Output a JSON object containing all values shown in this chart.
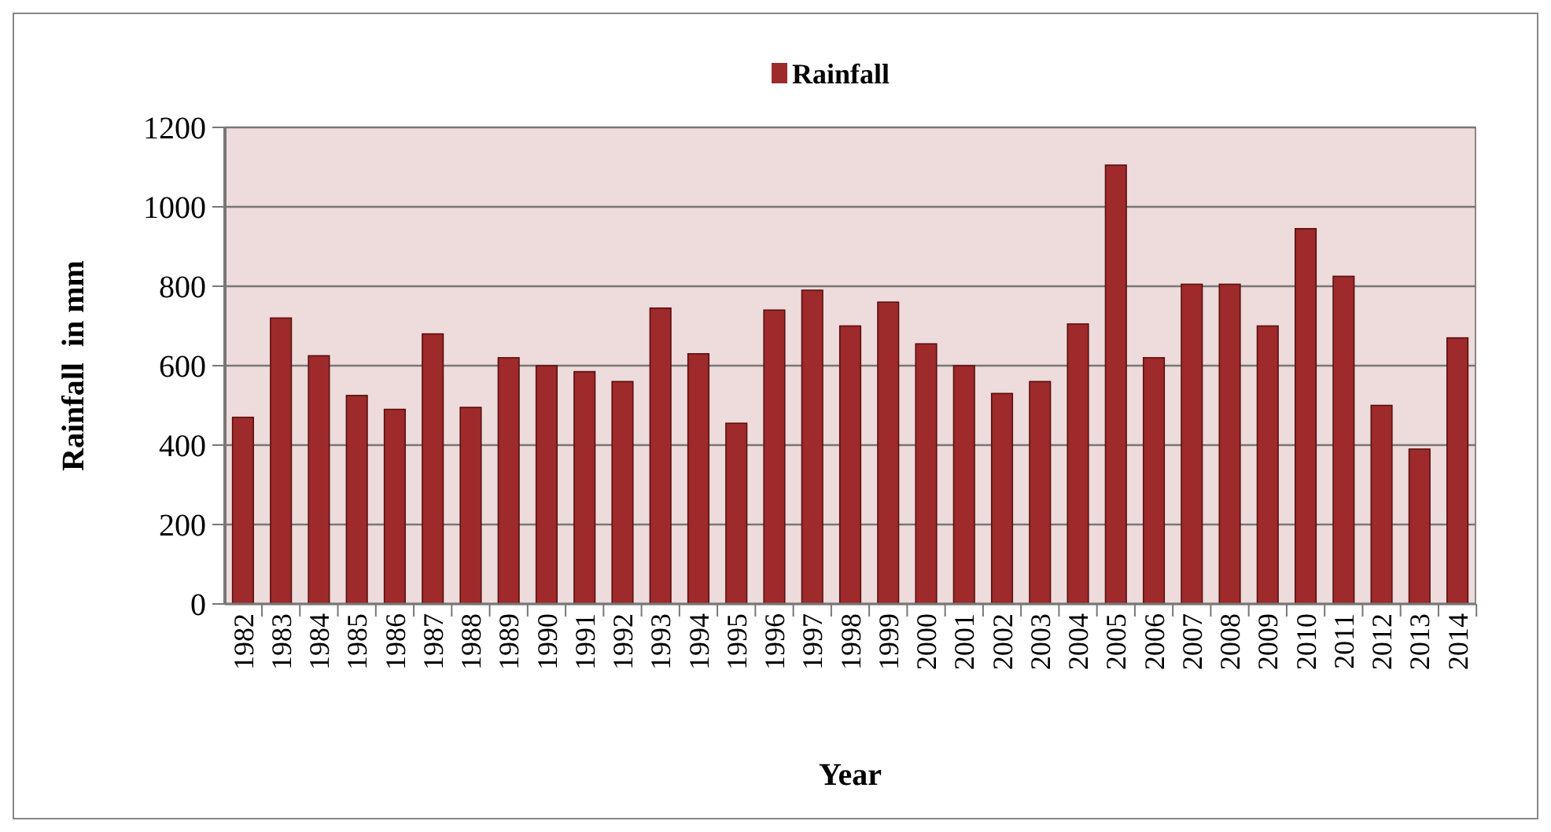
{
  "chart_data": {
    "type": "bar",
    "xlabel": "Year",
    "ylabel": "Rainfall  in mm",
    "categories": [
      "1982",
      "1983",
      "1984",
      "1985",
      "1986",
      "1987",
      "1988",
      "1989",
      "1990",
      "1991",
      "1992",
      "1993",
      "1994",
      "1995",
      "1996",
      "1997",
      "1998",
      "1999",
      "2000",
      "2001",
      "2002",
      "2003",
      "2004",
      "2005",
      "2006",
      "2007",
      "2008",
      "2009",
      "2010",
      "2011",
      "2012",
      "2013",
      "2014"
    ],
    "series": [
      {
        "name": "Rainfall",
        "color": "#9e2a2b",
        "values": [
          470,
          720,
          625,
          525,
          490,
          680,
          495,
          620,
          600,
          585,
          560,
          745,
          630,
          455,
          740,
          790,
          700,
          760,
          655,
          600,
          530,
          560,
          705,
          1105,
          620,
          805,
          805,
          700,
          945,
          825,
          500,
          390,
          670
        ]
      }
    ],
    "ylim": [
      0,
      1200
    ],
    "yticks": [
      0,
      200,
      400,
      600,
      800,
      1000,
      1200
    ],
    "grid": "y",
    "legend": "top"
  }
}
